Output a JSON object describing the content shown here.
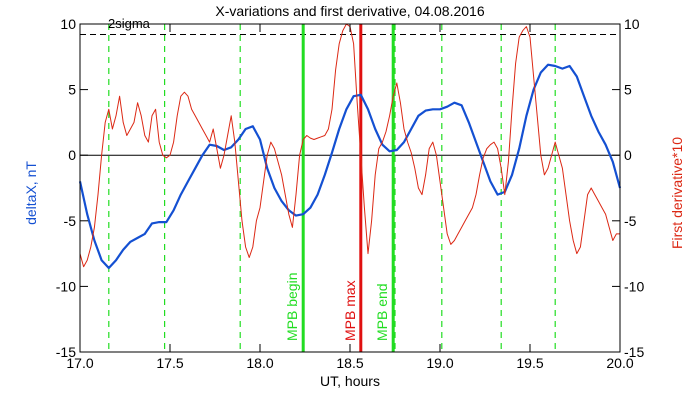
{
  "chart_data": {
    "type": "line",
    "title": "X-variations and first derivative, 04.08.2016",
    "xlabel": "UT, hours",
    "ylabel_left": "deltaX, nT",
    "ylabel_right": "First derivative*10",
    "xlim": [
      17.0,
      20.0
    ],
    "ylim_left": [
      -15,
      10
    ],
    "ylim_right": [
      -15,
      10
    ],
    "x_ticks": [
      "17.0",
      "17.5",
      "18.0",
      "18.5",
      "19.0",
      "19.5",
      "20.0"
    ],
    "y_ticks_left": [
      "-15",
      "-10",
      "-5",
      "0",
      "5",
      "10"
    ],
    "y_ticks_right": [
      "-15",
      "-10",
      "-5",
      "0",
      "5",
      "10"
    ],
    "colors": {
      "deltaX": "#1450d2",
      "derivative": "#dc2814",
      "green_marker": "#22dd22",
      "red_marker": "#e01010"
    },
    "threshold": {
      "label": "2sigma",
      "value": 9.2
    },
    "zero_line": 0,
    "dashed_markers_x": [
      17.16,
      17.47,
      17.89,
      18.75,
      19.01,
      19.34,
      19.64
    ],
    "labelled_markers": [
      {
        "x": 18.24,
        "label": "MPB begin",
        "color": "#22dd22"
      },
      {
        "x": 18.56,
        "label": "MPB max",
        "color": "#e01010"
      },
      {
        "x": 18.74,
        "label": "MPB end",
        "color": "#22dd22"
      }
    ],
    "series": [
      {
        "name": "deltaX",
        "axis": "left",
        "x": [
          17.0,
          17.04,
          17.08,
          17.12,
          17.16,
          17.2,
          17.24,
          17.28,
          17.32,
          17.36,
          17.4,
          17.44,
          17.48,
          17.52,
          17.56,
          17.6,
          17.64,
          17.68,
          17.72,
          17.76,
          17.8,
          17.84,
          17.88,
          17.92,
          17.96,
          18.0,
          18.04,
          18.08,
          18.12,
          18.16,
          18.2,
          18.24,
          18.28,
          18.32,
          18.36,
          18.4,
          18.44,
          18.48,
          18.52,
          18.56,
          18.6,
          18.64,
          18.68,
          18.72,
          18.76,
          18.8,
          18.84,
          18.88,
          18.92,
          18.96,
          19.0,
          19.04,
          19.08,
          19.12,
          19.16,
          19.2,
          19.24,
          19.28,
          19.32,
          19.36,
          19.4,
          19.44,
          19.48,
          19.52,
          19.56,
          19.6,
          19.64,
          19.68,
          19.72,
          19.76,
          19.8,
          19.84,
          19.88,
          19.92,
          19.96,
          20.0
        ],
        "values": [
          -2.0,
          -4.5,
          -6.5,
          -8.0,
          -8.6,
          -8.0,
          -7.2,
          -6.6,
          -6.3,
          -6.0,
          -5.2,
          -5.1,
          -5.1,
          -4.2,
          -3.0,
          -2.0,
          -1.0,
          0.0,
          0.8,
          0.7,
          0.4,
          0.6,
          1.2,
          2.0,
          2.2,
          1.2,
          -1.0,
          -2.5,
          -3.5,
          -4.2,
          -4.6,
          -4.5,
          -4.0,
          -3.0,
          -1.5,
          0.2,
          2.0,
          3.5,
          4.5,
          4.6,
          3.5,
          2.0,
          0.8,
          0.3,
          0.4,
          1.0,
          2.0,
          3.0,
          3.4,
          3.5,
          3.5,
          3.7,
          4.0,
          3.8,
          2.5,
          1.0,
          -0.5,
          -2.0,
          -3.0,
          -2.8,
          -1.5,
          0.5,
          3.0,
          5.0,
          6.3,
          6.9,
          6.8,
          6.6,
          6.8,
          6.0,
          4.5,
          3.0,
          1.8,
          0.8,
          -0.5,
          -2.5
        ]
      },
      {
        "name": "First derivative*10",
        "axis": "right",
        "x": [
          17.0,
          17.02,
          17.04,
          17.06,
          17.08,
          17.1,
          17.12,
          17.14,
          17.16,
          17.18,
          17.2,
          17.22,
          17.24,
          17.26,
          17.28,
          17.3,
          17.32,
          17.34,
          17.36,
          17.38,
          17.4,
          17.42,
          17.44,
          17.46,
          17.48,
          17.5,
          17.52,
          17.54,
          17.56,
          17.58,
          17.6,
          17.62,
          17.64,
          17.66,
          17.68,
          17.7,
          17.72,
          17.74,
          17.76,
          17.78,
          17.8,
          17.82,
          17.84,
          17.86,
          17.88,
          17.9,
          17.92,
          17.94,
          17.96,
          17.98,
          18.0,
          18.02,
          18.04,
          18.06,
          18.08,
          18.1,
          18.12,
          18.14,
          18.16,
          18.18,
          18.2,
          18.22,
          18.24,
          18.26,
          18.28,
          18.3,
          18.32,
          18.34,
          18.36,
          18.38,
          18.4,
          18.42,
          18.44,
          18.46,
          18.48,
          18.5,
          18.52,
          18.54,
          18.56,
          18.58,
          18.6,
          18.62,
          18.64,
          18.66,
          18.68,
          18.7,
          18.72,
          18.74,
          18.76,
          18.78,
          18.8,
          18.82,
          18.84,
          18.86,
          18.88,
          18.9,
          18.92,
          18.94,
          18.96,
          18.98,
          19.0,
          19.02,
          19.04,
          19.06,
          19.08,
          19.1,
          19.12,
          19.14,
          19.16,
          19.18,
          19.2,
          19.22,
          19.24,
          19.26,
          19.28,
          19.3,
          19.32,
          19.34,
          19.36,
          19.38,
          19.4,
          19.42,
          19.44,
          19.46,
          19.48,
          19.5,
          19.52,
          19.54,
          19.56,
          19.58,
          19.6,
          19.62,
          19.64,
          19.66,
          19.68,
          19.7,
          19.72,
          19.74,
          19.76,
          19.78,
          19.8,
          19.82,
          19.84,
          19.86,
          19.88,
          19.9,
          19.92,
          19.94,
          19.96,
          19.98,
          20.0
        ],
        "values": [
          -7.5,
          -8.5,
          -8.0,
          -7.0,
          -5.5,
          -3.0,
          0.0,
          2.5,
          3.5,
          2.0,
          3.0,
          4.5,
          2.5,
          1.5,
          2.0,
          2.5,
          4.0,
          3.0,
          1.5,
          1.0,
          3.0,
          3.5,
          1.0,
          0.0,
          -0.2,
          0.0,
          1.0,
          3.0,
          4.5,
          4.8,
          4.5,
          3.5,
          3.0,
          2.5,
          2.0,
          1.5,
          1.0,
          2.0,
          0.5,
          -1.0,
          0.0,
          1.5,
          3.0,
          1.0,
          -2.0,
          -5.0,
          -7.0,
          -7.8,
          -7.0,
          -5.0,
          -4.0,
          -2.0,
          0.0,
          1.0,
          0.5,
          -0.5,
          -1.5,
          -3.0,
          -4.5,
          -5.5,
          -3.0,
          0.0,
          1.2,
          1.5,
          1.3,
          1.2,
          1.3,
          1.4,
          1.5,
          2.0,
          3.5,
          6.5,
          8.5,
          9.5,
          10.0,
          9.8,
          8.5,
          4.0,
          0.0,
          -4.0,
          -7.5,
          -5.0,
          -1.5,
          0.5,
          1.0,
          1.8,
          3.0,
          4.5,
          5.5,
          4.0,
          2.0,
          1.0,
          0.2,
          -1.0,
          -2.5,
          -3.0,
          -1.5,
          0.5,
          1.0,
          0.0,
          -2.0,
          -4.0,
          -6.0,
          -6.8,
          -6.5,
          -6.0,
          -5.5,
          -5.0,
          -4.5,
          -4.0,
          -3.0,
          -1.5,
          -0.2,
          0.5,
          0.8,
          1.0,
          0.5,
          -1.0,
          -3.0,
          -0.5,
          3.5,
          7.0,
          9.0,
          9.5,
          9.8,
          9.0,
          6.0,
          3.0,
          0.0,
          -1.5,
          -1.0,
          0.0,
          1.0,
          0.0,
          -1.0,
          -3.0,
          -5.0,
          -6.5,
          -7.5,
          -7.0,
          -5.0,
          -3.0,
          -2.5,
          -3.0,
          -3.5,
          -4.0,
          -4.5,
          -5.5,
          -6.5,
          -6.0,
          -6.0
        ]
      }
    ]
  }
}
